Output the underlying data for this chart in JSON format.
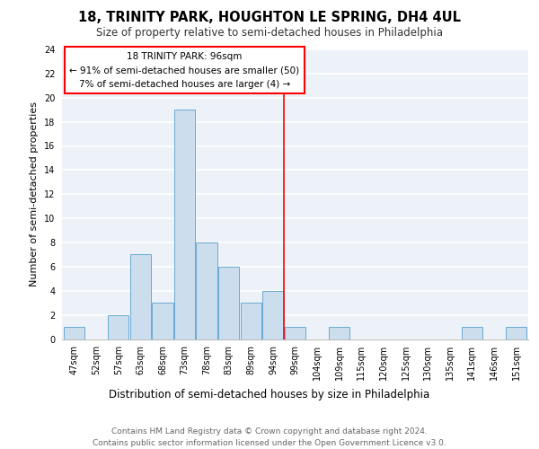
{
  "title": "18, TRINITY PARK, HOUGHTON LE SPRING, DH4 4UL",
  "subtitle": "Size of property relative to semi-detached houses in Philadelphia",
  "xlabel": "Distribution of semi-detached houses by size in Philadelphia",
  "ylabel": "Number of semi-detached properties",
  "footer": "Contains HM Land Registry data © Crown copyright and database right 2024.\nContains public sector information licensed under the Open Government Licence v3.0.",
  "bins": [
    "47sqm",
    "52sqm",
    "57sqm",
    "63sqm",
    "68sqm",
    "73sqm",
    "78sqm",
    "83sqm",
    "89sqm",
    "94sqm",
    "99sqm",
    "104sqm",
    "109sqm",
    "115sqm",
    "120sqm",
    "125sqm",
    "130sqm",
    "135sqm",
    "141sqm",
    "146sqm",
    "151sqm"
  ],
  "counts": [
    1,
    0,
    2,
    7,
    3,
    19,
    8,
    6,
    3,
    4,
    1,
    0,
    1,
    0,
    0,
    0,
    0,
    0,
    1,
    0,
    1
  ],
  "bar_color": "#ccdded",
  "bar_edge_color": "#6aaad4",
  "bg_color": "#edf2f9",
  "grid_color": "#ffffff",
  "vline_x": 9.5,
  "vline_color": "red",
  "annotation_text": "18 TRINITY PARK: 96sqm\n← 91% of semi-detached houses are smaller (50)\n7% of semi-detached houses are larger (4) →",
  "annotation_box_color": "red",
  "ylim": [
    0,
    24
  ],
  "yticks": [
    0,
    2,
    4,
    6,
    8,
    10,
    12,
    14,
    16,
    18,
    20,
    22,
    24
  ],
  "title_fontsize": 10.5,
  "subtitle_fontsize": 8.5,
  "ylabel_fontsize": 8,
  "xlabel_fontsize": 8.5,
  "tick_fontsize": 7,
  "footer_fontsize": 6.5,
  "ann_fontsize": 7.5
}
